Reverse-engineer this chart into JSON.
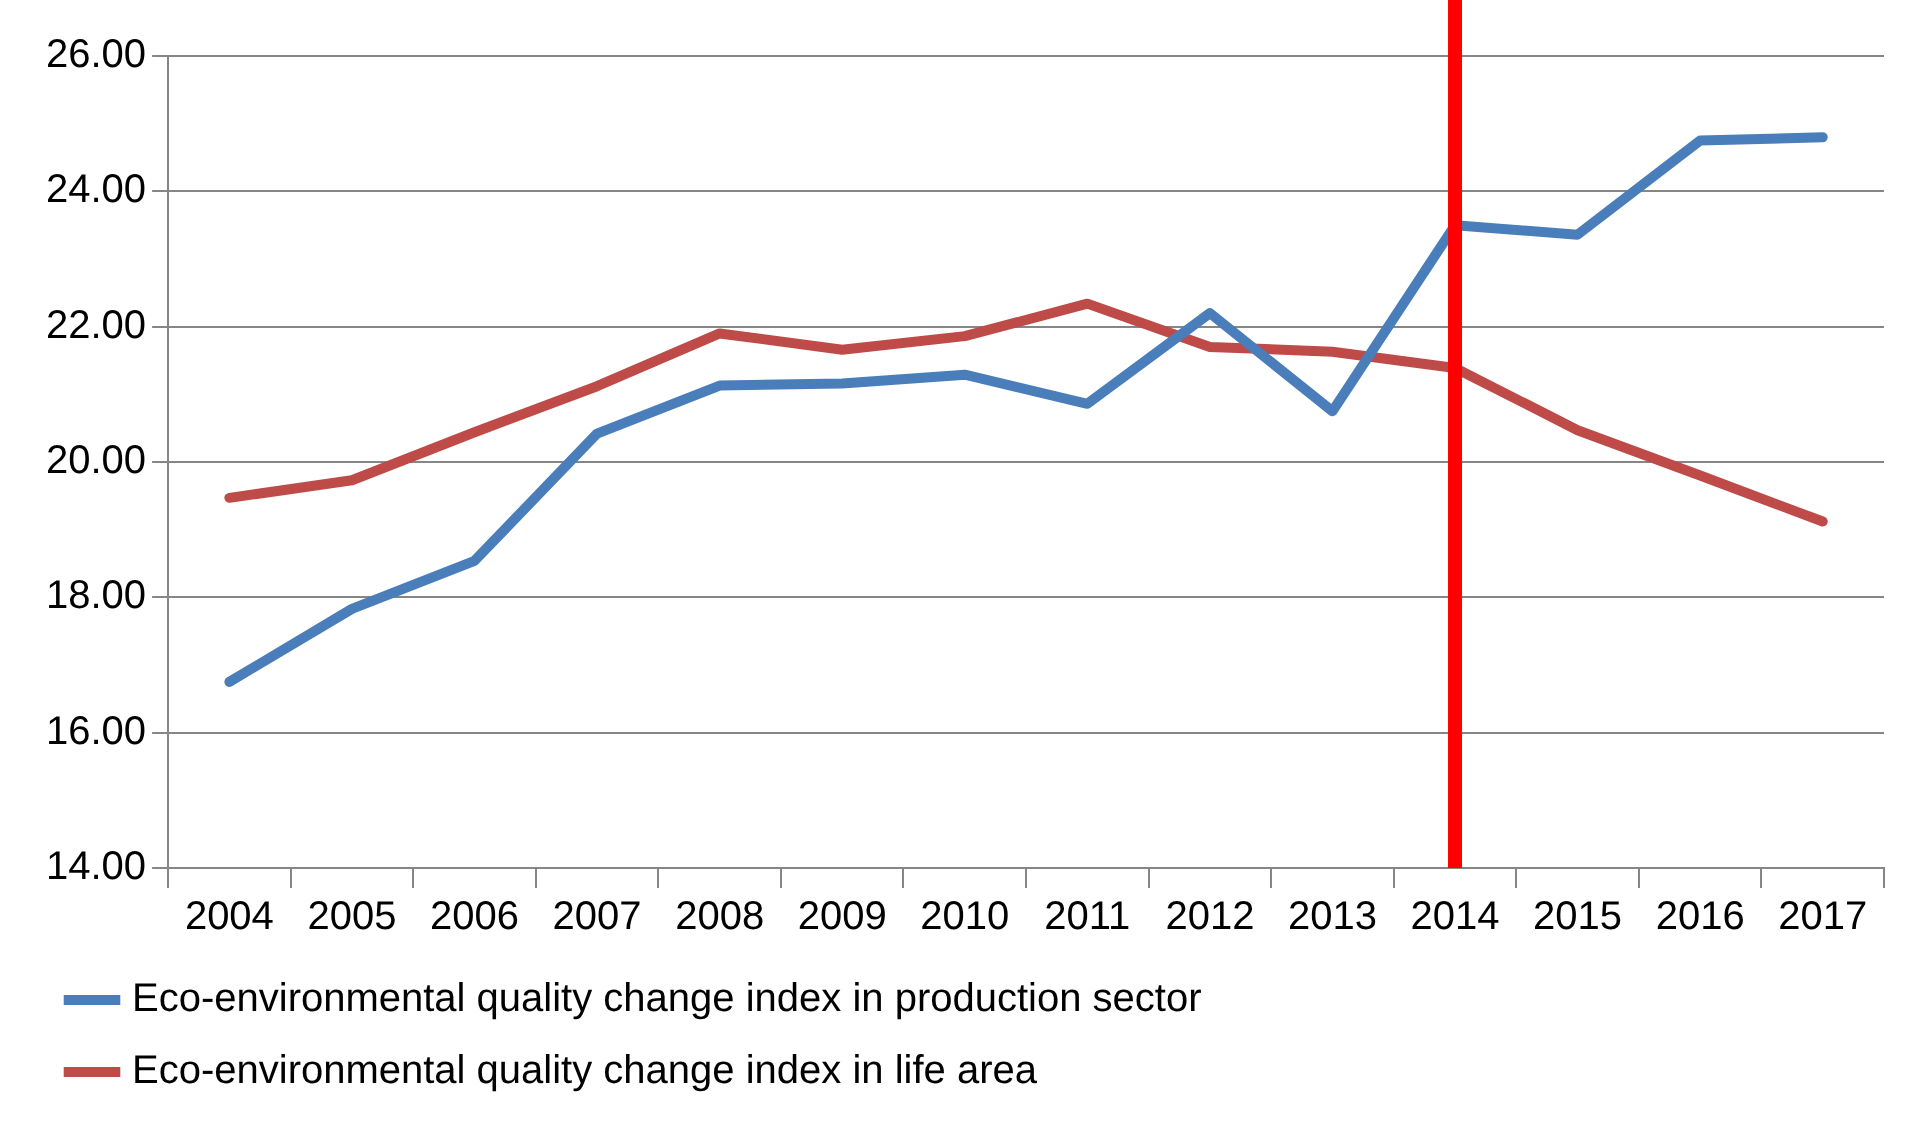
{
  "chart_data": {
    "type": "line",
    "categories": [
      "2004",
      "2005",
      "2006",
      "2007",
      "2008",
      "2009",
      "2010",
      "2011",
      "2012",
      "2013",
      "2014",
      "2015",
      "2016",
      "2017"
    ],
    "series": [
      {
        "name": "Eco-environmental quality change index in production sector",
        "color": "#4a7ebb",
        "values": [
          16.75,
          17.83,
          18.54,
          20.42,
          21.13,
          21.16,
          21.29,
          20.86,
          22.2,
          20.75,
          23.5,
          23.36,
          24.75,
          24.8
        ]
      },
      {
        "name": "Eco-environmental quality change index in life area",
        "color": "#be4b48",
        "values": [
          19.47,
          19.73,
          20.44,
          21.12,
          21.9,
          21.66,
          21.86,
          22.34,
          21.7,
          21.63,
          21.39,
          20.47,
          19.8,
          19.12
        ]
      }
    ],
    "ylim": [
      14,
      26
    ],
    "yticks": [
      {
        "value": 14,
        "label": "14.00"
      },
      {
        "value": 16,
        "label": "16.00"
      },
      {
        "value": 18,
        "label": "18.00"
      },
      {
        "value": 20,
        "label": "20.00"
      },
      {
        "value": 22,
        "label": "22.00"
      },
      {
        "value": 24,
        "label": "24.00"
      },
      {
        "value": 26,
        "label": "26.00"
      }
    ],
    "grid": "y",
    "legend": "bottom",
    "marker": "none",
    "line_style": "solid",
    "ref_lines": [
      {
        "axis": "x",
        "value": "2014",
        "color": "#ff0000"
      }
    ]
  }
}
